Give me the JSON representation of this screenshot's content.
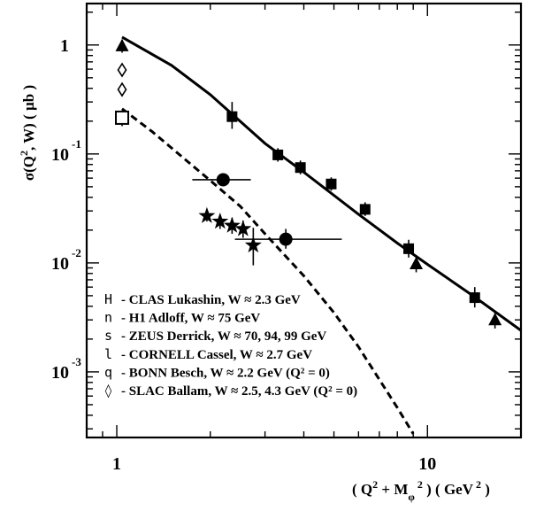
{
  "chart_data": {
    "type": "scatter",
    "title": "",
    "xlabel": "( Q² + Mφ² ) ( GeV² )",
    "ylabel": "σ(Q², W) ( µb )",
    "xscale": "log",
    "yscale": "log",
    "xlim": [
      0.8,
      20
    ],
    "ylim": [
      0.00025,
      2.4
    ],
    "x_ticks": [
      {
        "value": 1,
        "label": "1"
      },
      {
        "value": 10,
        "label": "10"
      }
    ],
    "y_ticks": [
      {
        "value": 1,
        "mantissa": "1",
        "exponent": ""
      },
      {
        "value": 0.1,
        "mantissa": "10",
        "exponent": "-1"
      },
      {
        "value": 0.01,
        "mantissa": "10",
        "exponent": "-2"
      },
      {
        "value": 0.001,
        "mantissa": "10",
        "exponent": "-3"
      }
    ],
    "grid": false,
    "legend_position": "bottom-left",
    "series": [
      {
        "legend_symbol": "H",
        "legend_label": "- CLAS Lukashin, W ≈ 2.3 GeV",
        "marker": "filled-square",
        "points": [
          {
            "x": 2.35,
            "y": 0.22,
            "ylo": 0.17,
            "yhi": 0.3
          },
          {
            "x": 3.3,
            "y": 0.098,
            "ylo": 0.085,
            "yhi": 0.113
          },
          {
            "x": 3.9,
            "y": 0.075,
            "ylo": 0.065,
            "yhi": 0.087
          },
          {
            "x": 4.9,
            "y": 0.053,
            "ylo": 0.046,
            "yhi": 0.061
          },
          {
            "x": 6.3,
            "y": 0.031,
            "ylo": 0.027,
            "yhi": 0.036
          },
          {
            "x": 8.7,
            "y": 0.0135,
            "ylo": 0.0112,
            "yhi": 0.0163
          },
          {
            "x": 14.2,
            "y": 0.0048,
            "ylo": 0.0039,
            "yhi": 0.006
          }
        ]
      },
      {
        "legend_symbol": "n",
        "legend_label": "- H1 Adloff, W ≈ 75 GeV",
        "marker": "filled-circle",
        "points": [
          {
            "x": 2.2,
            "y": 0.058,
            "ylo": 0.052,
            "yhi": 0.065,
            "xlo": 1.75,
            "xhi": 2.7
          },
          {
            "x": 3.5,
            "y": 0.0165,
            "ylo": 0.0135,
            "yhi": 0.0205,
            "xlo": 2.4,
            "xhi": 5.3
          }
        ]
      },
      {
        "legend_symbol": "s",
        "legend_label": "- ZEUS Derrick, W ≈ 70, 94, 99 GeV",
        "marker": "filled-star",
        "points": [
          {
            "x": 1.95,
            "y": 0.027,
            "ylo": 0.024,
            "yhi": 0.03
          },
          {
            "x": 2.15,
            "y": 0.024,
            "ylo": 0.0205,
            "yhi": 0.028
          },
          {
            "x": 2.35,
            "y": 0.022,
            "ylo": 0.0185,
            "yhi": 0.026
          },
          {
            "x": 2.55,
            "y": 0.0205,
            "ylo": 0.017,
            "yhi": 0.0245
          },
          {
            "x": 2.75,
            "y": 0.0145,
            "ylo": 0.0095,
            "yhi": 0.021
          }
        ]
      },
      {
        "legend_symbol": "l",
        "legend_label": "- CORNELL Cassel, W ≈ 2.7 GeV",
        "marker": "filled-triangle",
        "points": [
          {
            "x": 1.04,
            "y": 0.98,
            "ylo": 0.85,
            "yhi": 1.12
          },
          {
            "x": 9.2,
            "y": 0.0098,
            "ylo": 0.0082,
            "yhi": 0.0115
          },
          {
            "x": 16.5,
            "y": 0.003,
            "ylo": 0.0025,
            "yhi": 0.0035
          }
        ]
      },
      {
        "legend_symbol": "q",
        "legend_label": "- BONN Besch, W ≈ 2.2 GeV (Q² = 0)",
        "marker": "open-square",
        "points": [
          {
            "x": 1.04,
            "y": 0.215,
            "ylo": 0.18,
            "yhi": 0.25
          }
        ]
      },
      {
        "legend_symbol": "◊",
        "legend_label": "- SLAC Ballam, W ≈ 2.5, 4.3  GeV (Q² = 0)",
        "marker": "open-diamond",
        "points": [
          {
            "x": 1.04,
            "y": 0.59,
            "ylo": 0.53,
            "yhi": 0.65
          },
          {
            "x": 1.04,
            "y": 0.39,
            "ylo": 0.34,
            "yhi": 0.44
          }
        ]
      }
    ],
    "curves": [
      {
        "style": "solid",
        "points": [
          {
            "x": 1.04,
            "y": 1.18
          },
          {
            "x": 1.5,
            "y": 0.65
          },
          {
            "x": 2.0,
            "y": 0.35
          },
          {
            "x": 3.0,
            "y": 0.125
          },
          {
            "x": 4.0,
            "y": 0.068
          },
          {
            "x": 6.0,
            "y": 0.028
          },
          {
            "x": 8.0,
            "y": 0.0152
          },
          {
            "x": 10.0,
            "y": 0.0097
          },
          {
            "x": 14.0,
            "y": 0.005
          },
          {
            "x": 20.0,
            "y": 0.0024
          }
        ]
      },
      {
        "style": "dashed",
        "points": [
          {
            "x": 1.04,
            "y": 0.26
          },
          {
            "x": 1.3,
            "y": 0.16
          },
          {
            "x": 1.7,
            "y": 0.084
          },
          {
            "x": 2.0,
            "y": 0.057
          },
          {
            "x": 2.5,
            "y": 0.033
          },
          {
            "x": 3.0,
            "y": 0.0185
          },
          {
            "x": 4.0,
            "y": 0.0076
          },
          {
            "x": 5.0,
            "y": 0.0035
          },
          {
            "x": 6.0,
            "y": 0.0017
          },
          {
            "x": 7.0,
            "y": 0.00085
          },
          {
            "x": 8.0,
            "y": 0.00047
          },
          {
            "x": 9.0,
            "y": 0.00027
          }
        ]
      }
    ]
  }
}
